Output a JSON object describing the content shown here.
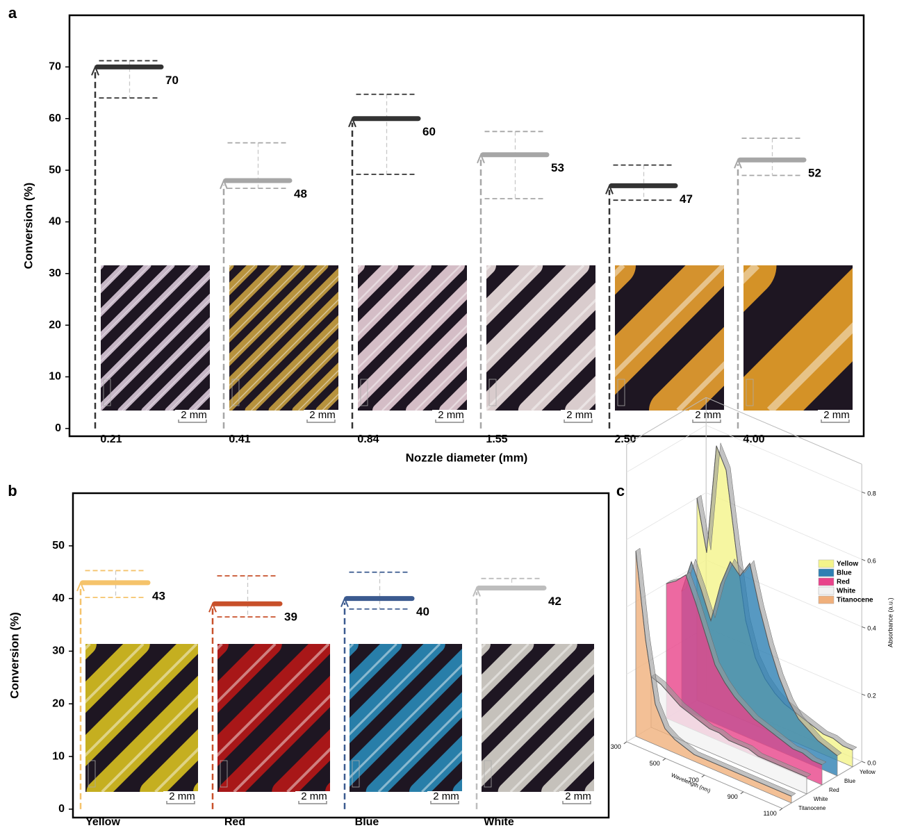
{
  "chart_data": [
    {
      "type": "range",
      "panel_label": "a",
      "ylabel": "Conversion (%)",
      "xlabel": "Nozzle diameter (mm)",
      "scale_bar": "2 mm",
      "categories": [
        "0.21",
        "0.41",
        "0.84",
        "1.55",
        "2.50",
        "4.00"
      ],
      "values": [
        70,
        48,
        60,
        53,
        47,
        52
      ],
      "upper": [
        71.2,
        55.3,
        64.7,
        57.5,
        51,
        56.2
      ],
      "lower": [
        64,
        46.5,
        49.2,
        44.5,
        44.2,
        49
      ],
      "colors": [
        "#333333",
        "#a6a6a6",
        "#333333",
        "#a6a6a6",
        "#333333",
        "#a6a6a6"
      ],
      "ylim": [
        -1.5,
        80
      ],
      "yticks": [
        0,
        10,
        20,
        30,
        40,
        50,
        60,
        70
      ]
    },
    {
      "type": "range",
      "panel_label": "b",
      "ylabel": "Conversion (%)",
      "scale_bar": "2 mm",
      "categories": [
        "Yellow",
        "Red",
        "Blue",
        "White"
      ],
      "values": [
        43,
        39,
        40,
        42
      ],
      "upper": [
        45.3,
        44.3,
        45,
        43.8
      ],
      "lower": [
        40.2,
        36.5,
        38,
        42
      ],
      "colors": [
        "#f5c36b",
        "#c8502a",
        "#3b5a8f",
        "#bdbdbd"
      ],
      "ylim": [
        -1.6,
        60
      ],
      "yticks": [
        0,
        10,
        20,
        30,
        40,
        50
      ]
    },
    {
      "type": "ribbon3d",
      "panel_label": "c",
      "xlabel": "Wavelength (nm)",
      "ylabel": "Absorbance (a.u.)",
      "x": [
        300,
        350,
        400,
        450,
        500,
        550,
        600,
        650,
        700,
        750,
        800,
        850,
        900,
        950,
        1000,
        1050,
        1100
      ],
      "xlim": [
        300,
        1100
      ],
      "xticks": [
        300,
        500,
        700,
        900,
        1100
      ],
      "ylim": [
        0,
        0.8
      ],
      "yticks": [
        {
          "value": 0,
          "label": "0.0"
        },
        0.2,
        0.4,
        0.6,
        0.8
      ],
      "series": [
        {
          "name": "Yellow",
          "color": "#f4f48a",
          "values": [
            0.6,
            0.45,
            0.78,
            0.72,
            0.5,
            0.3,
            0.2,
            0.15,
            0.12,
            0.1,
            0.09,
            0.08,
            0.07,
            0.06,
            0.06,
            0.05,
            0.05
          ]
        },
        {
          "name": "Blue",
          "color": "#2d7fb3",
          "values": [
            0.35,
            0.45,
            0.38,
            0.3,
            0.42,
            0.5,
            0.47,
            0.52,
            0.4,
            0.3,
            0.22,
            0.16,
            0.12,
            0.1,
            0.08,
            0.07,
            0.06
          ]
        },
        {
          "name": "Red",
          "color": "#e8438a",
          "values": [
            0.4,
            0.42,
            0.45,
            0.38,
            0.3,
            0.22,
            0.18,
            0.15,
            0.13,
            0.11,
            0.1,
            0.09,
            0.08,
            0.07,
            0.07,
            0.06,
            0.06
          ]
        },
        {
          "name": "White",
          "color": "#f2f2f2",
          "values": [
            0.15,
            0.14,
            0.12,
            0.1,
            0.09,
            0.08,
            0.07,
            0.07,
            0.06,
            0.06,
            0.06,
            0.05,
            0.05,
            0.05,
            0.05,
            0.05,
            0.05
          ]
        },
        {
          "name": "Titanocene",
          "color": "#f0b07c",
          "values": [
            0.55,
            0.3,
            0.12,
            0.06,
            0.04,
            0.03,
            0.02,
            0.02,
            0.02,
            0.02,
            0.02,
            0.02,
            0.02,
            0.02,
            0.02,
            0.02,
            0.02
          ]
        }
      ]
    }
  ]
}
